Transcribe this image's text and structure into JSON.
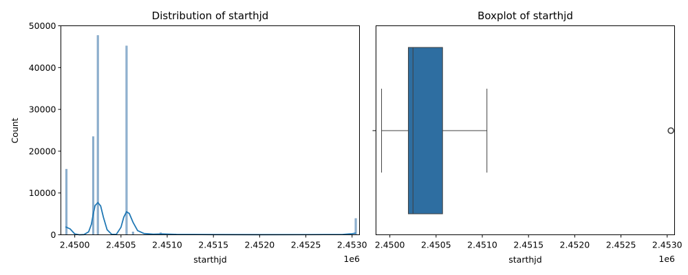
{
  "chart_data": [
    {
      "type": "histogram",
      "title": "Distribution of starthjd",
      "xlabel": "starthjd",
      "ylabel": "Count",
      "offset_label": "1e6",
      "xlim": [
        2.44985,
        2.45308
      ],
      "ylim": [
        0,
        50000
      ],
      "xticks": [
        2.45,
        2.4505,
        2.451,
        2.4515,
        2.452,
        2.4525,
        2.453
      ],
      "xtick_labels": [
        "2.4500",
        "2.4505",
        "2.4510",
        "2.4515",
        "2.4520",
        "2.4525",
        "2.4530"
      ],
      "yticks": [
        0,
        10000,
        20000,
        30000,
        40000,
        50000
      ],
      "ytick_labels": [
        "0",
        "10000",
        "20000",
        "30000",
        "40000",
        "50000"
      ],
      "bar_color": "#8fb1cf",
      "kde_color": "#1f77b4",
      "bars": [
        {
          "x": 2.44991,
          "count": 15700
        },
        {
          "x": 2.4502,
          "count": 23500
        },
        {
          "x": 2.45025,
          "count": 47700
        },
        {
          "x": 2.45056,
          "count": 45200
        },
        {
          "x": 2.45063,
          "count": 700
        },
        {
          "x": 2.45093,
          "count": 500
        },
        {
          "x": 2.45304,
          "count": 3900
        }
      ],
      "kde": {
        "x": [
          2.4499,
          2.44995,
          2.45,
          2.45005,
          2.4501,
          2.45015,
          2.45018,
          2.4502,
          2.45022,
          2.45025,
          2.45028,
          2.45031,
          2.45035,
          2.4504,
          2.45045,
          2.4505,
          2.45053,
          2.45056,
          2.45059,
          2.45063,
          2.45068,
          2.45075,
          2.45085,
          2.45095,
          2.4511,
          2.4515,
          2.452,
          2.4525,
          2.4529,
          2.453,
          2.45304
        ],
        "y": [
          1900,
          1400,
          200,
          0,
          50,
          700,
          2500,
          5000,
          7000,
          7700,
          6900,
          4200,
          1200,
          100,
          100,
          1800,
          4200,
          5500,
          5100,
          3000,
          1000,
          300,
          150,
          200,
          100,
          50,
          30,
          40,
          80,
          250,
          400
        ]
      }
    },
    {
      "type": "boxplot",
      "title": "Boxplot of starthjd",
      "xlabel": "starthjd",
      "offset_label": "1e6",
      "xlim": [
        2.44985,
        2.45308
      ],
      "xticks": [
        2.45,
        2.4505,
        2.451,
        2.4515,
        2.452,
        2.4525,
        2.453
      ],
      "xtick_labels": [
        "2.4500",
        "2.4505",
        "2.4510",
        "2.4515",
        "2.4520",
        "2.4525",
        "2.4530"
      ],
      "box_color": "#2e6ea1",
      "line_color": "#3f3f3f",
      "whisker_low": 2.44991,
      "q1": 2.4502,
      "median": 2.45025,
      "q3": 2.45057,
      "whisker_high": 2.45105,
      "outliers": [
        2.45304
      ]
    }
  ]
}
